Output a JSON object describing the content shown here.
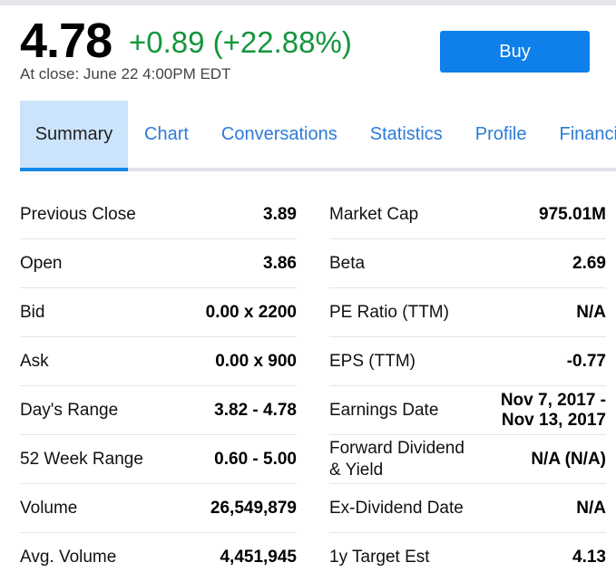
{
  "quote": {
    "price": "4.78",
    "change": "+0.89 (+22.88%)",
    "close_time": "At close: June 22 4:00PM EDT",
    "change_color": "#14963c"
  },
  "buy_label": "Buy",
  "tabs": [
    "Summary",
    "Chart",
    "Conversations",
    "Statistics",
    "Profile",
    "Financials"
  ],
  "left": [
    {
      "label": "Previous Close",
      "value": "3.89"
    },
    {
      "label": "Open",
      "value": "3.86"
    },
    {
      "label": "Bid",
      "value": "0.00 x 2200"
    },
    {
      "label": "Ask",
      "value": "0.00 x 900"
    },
    {
      "label": "Day's Range",
      "value": "3.82 - 4.78"
    },
    {
      "label": "52 Week Range",
      "value": "0.60 - 5.00"
    },
    {
      "label": "Volume",
      "value": "26,549,879"
    },
    {
      "label": "Avg. Volume",
      "value": "4,451,945"
    }
  ],
  "right": [
    {
      "label": "Market Cap",
      "value": "975.01M"
    },
    {
      "label": "Beta",
      "value": "2.69"
    },
    {
      "label": "PE Ratio (TTM)",
      "value": "N/A"
    },
    {
      "label": "EPS (TTM)",
      "value": "-0.77"
    },
    {
      "label": "Earnings Date",
      "value": "Nov 7, 2017 - Nov 13, 2017"
    },
    {
      "label": "Forward Dividend & Yield",
      "value": "N/A (N/A)"
    },
    {
      "label": "Ex-Dividend Date",
      "value": "N/A"
    },
    {
      "label": "1y Target Est",
      "value": "4.13"
    }
  ]
}
